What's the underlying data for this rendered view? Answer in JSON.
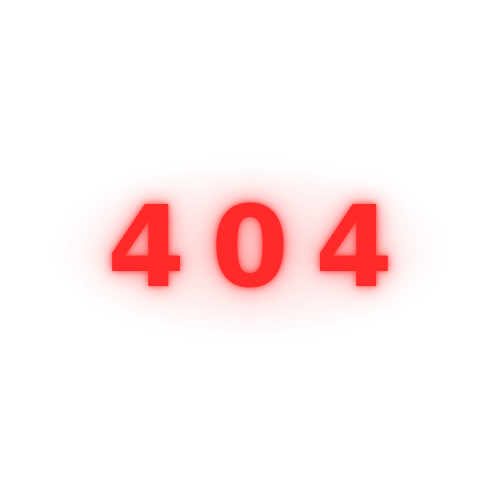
{
  "error": {
    "code": "404"
  },
  "colors": {
    "background": "#ffffff",
    "text": "#ff2b2b",
    "glow": "#ff3c3c"
  }
}
